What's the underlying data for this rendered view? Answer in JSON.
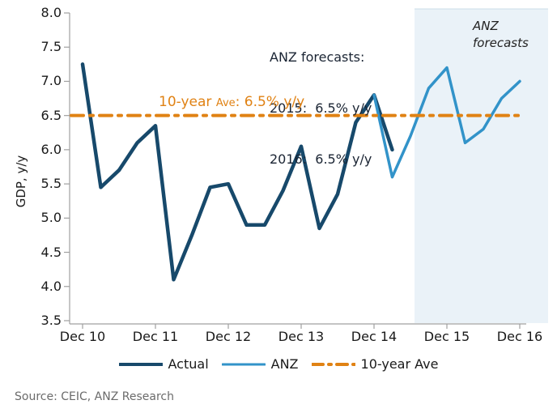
{
  "chart_data": {
    "type": "line",
    "title": "",
    "xlabel": "",
    "ylabel": "GDP, y/y",
    "ylim": [
      3.5,
      8.0
    ],
    "ytick_step": 0.5,
    "yticklabels": [
      "8.0",
      "7.5",
      "7.0",
      "6.5",
      "6.0",
      "5.5",
      "5.0",
      "4.5",
      "4.0",
      "3.5"
    ],
    "xticklabels": [
      "Dec 10",
      "Dec 11",
      "Dec 12",
      "Dec 13",
      "Dec 14",
      "Dec 15",
      "Dec 16"
    ],
    "x_frequency": "quarterly",
    "series": [
      {
        "name": "Actual",
        "color": "#17496B",
        "width": 4.5,
        "start_quarter": "Dec 10",
        "start_index": 0,
        "values": [
          7.25,
          5.45,
          5.7,
          6.1,
          6.35,
          4.1,
          4.75,
          5.45,
          5.5,
          4.9,
          4.9,
          5.4,
          6.05,
          4.85,
          5.35,
          6.4,
          6.8,
          6.0
        ]
      },
      {
        "name": "ANZ",
        "color": "#3293C9",
        "width": 3.5,
        "start_quarter": "Dec 14",
        "start_index": 16,
        "values": [
          6.8,
          5.6,
          6.2,
          6.9,
          7.2,
          6.1,
          6.3,
          6.75,
          7.0
        ]
      }
    ],
    "ten_year_ave": {
      "value": 6.5,
      "color": "#E08214"
    },
    "forecast_region": {
      "label": "ANZ forecasts",
      "fill": "#EAF2F8",
      "covers": "Jun 15 onwards"
    },
    "grid": false,
    "legend_position": "bottom"
  },
  "annotations": {
    "forecast_box": {
      "line1": "ANZ forecasts:",
      "line2": "2015:  6.5% y/y",
      "line3": "2016:  6.5% y/y"
    },
    "ave_label": {
      "part1": "10-year ",
      "part2": "Ave",
      "part3": ": 6.5% y/y"
    },
    "region_label": {
      "line1": "ANZ",
      "line2": "forecasts"
    }
  },
  "legend": {
    "items": [
      {
        "label": "Actual",
        "color": "#17496B",
        "style": "solid",
        "width": 4
      },
      {
        "label": "ANZ",
        "color": "#3293C9",
        "style": "solid",
        "width": 3
      },
      {
        "label": "10-year Ave",
        "color": "#E08214",
        "style": "dash-dot",
        "width": 4
      }
    ]
  },
  "source_text": "Source: CEIC, ANZ Research",
  "colors": {
    "axis": "#A0A0A0",
    "shading_border": "#CBDCE9",
    "background": "#FFFFFF"
  }
}
